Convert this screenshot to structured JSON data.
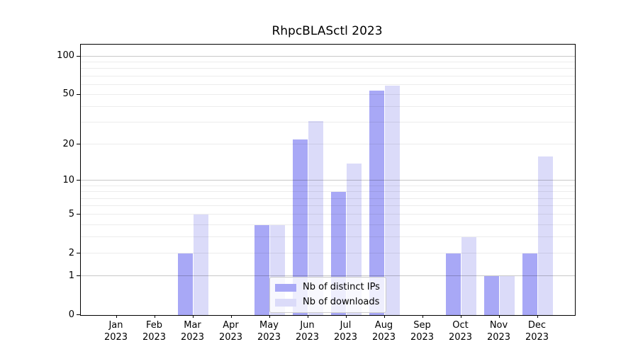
{
  "title": "RhpcBLASctl 2023",
  "chart_data": {
    "type": "bar",
    "title": "RhpcBLASctl 2023",
    "categories": [
      "Jan 2023",
      "Feb 2023",
      "Mar 2023",
      "Apr 2023",
      "May 2023",
      "Jun 2023",
      "Jul 2023",
      "Aug 2023",
      "Sep 2023",
      "Oct 2023",
      "Nov 2023",
      "Dec 2023"
    ],
    "series": [
      {
        "name": "Nb of distinct IPs",
        "color": "#a8a8f6",
        "values": [
          0,
          0,
          2,
          0,
          4,
          22,
          8,
          54,
          0,
          2,
          1,
          2
        ]
      },
      {
        "name": "Nb of downloads",
        "color": "#dbdbf9",
        "values": [
          0,
          0,
          5,
          0,
          4,
          31,
          14,
          59,
          0,
          3,
          1,
          16
        ]
      }
    ],
    "yscale": "log1p",
    "ylim": [
      0,
      123
    ],
    "yticks": [
      0,
      1,
      2,
      5,
      10,
      20,
      50,
      100
    ],
    "grid_major": [
      1,
      10,
      100
    ],
    "grid_minor": [
      2,
      3,
      4,
      5,
      6,
      7,
      8,
      9,
      20,
      30,
      40,
      50,
      60,
      70,
      80,
      90
    ],
    "grid": "horizontal",
    "legend_position": "inside-bottom-center",
    "xlabel": "",
    "ylabel": ""
  },
  "legend": {
    "items": [
      {
        "label": "Nb of distinct IPs",
        "color": "#a8a8f6"
      },
      {
        "label": "Nb of downloads",
        "color": "#dbdbf9"
      }
    ]
  },
  "colors": {
    "grid_major": "#c8c8c8",
    "grid_minor": "#ececec",
    "axis": "#000000",
    "text": "#000000",
    "legend_border": "#cccccc"
  }
}
